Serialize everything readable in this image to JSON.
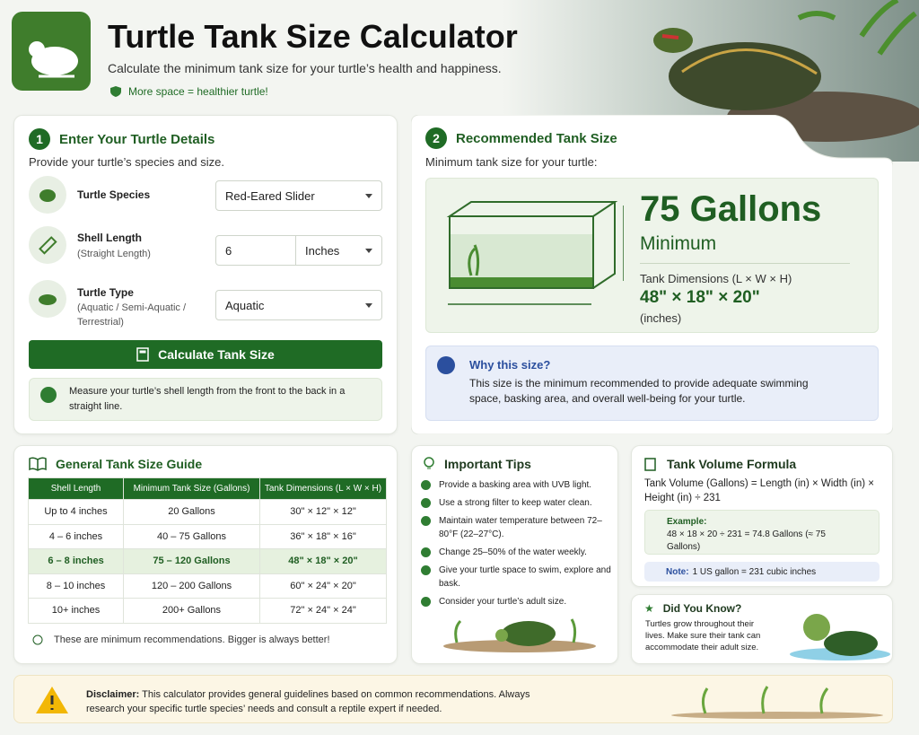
{
  "header": {
    "title": "Turtle Tank Size Calculator",
    "subtitle": "Calculate the minimum tank size for your turtle’s health and happiness.",
    "badge": "More space = healthier turtle!"
  },
  "details": {
    "step": 1,
    "title": "Enter Your Turtle Details",
    "description": "Provide your turtle’s species and size.",
    "fields": [
      {
        "label": "Turtle Species",
        "value": "Red-Eared Slider"
      },
      {
        "label": "Shell Length",
        "hint": "(Straight Length)",
        "value": 6,
        "unit": "Inches"
      },
      {
        "label": "Turtle Type",
        "hint": "(Aquatic / Semi-Aquatic / Terrestrial)",
        "value": "Aquatic"
      }
    ],
    "button": "Calculate Tank Size",
    "tip": "Measure your turtle’s shell length from the front to the back in a straight line."
  },
  "result": {
    "step": 2,
    "title": "Recommended Tank Size",
    "description": "Minimum tank size for your turtle:",
    "gallons": "75 Gallons",
    "qualifier": "Minimum",
    "dimensions_label": "Tank Dimensions (L × W × H)",
    "dimensions": "48\" × 18\" × 20\"",
    "units": "(inches)",
    "why_title": "Why this size?",
    "why_text": "This size is the minimum recommended to provide adequate swimming space, basking area, and overall well-being for your turtle."
  },
  "guide": {
    "title": "General Tank Size Guide",
    "columns": [
      "Shell Length",
      "Minimum Tank Size (Gallons)",
      "Tank Dimensions (L × W × H)"
    ],
    "rows": [
      [
        "Up to 4 inches",
        "20 Gallons",
        "30\" × 12\" × 12\""
      ],
      [
        "4 – 6 inches",
        "40 – 75 Gallons",
        "36\" × 18\" × 16\""
      ],
      [
        "6 – 8 inches",
        "75 – 120 Gallons",
        "48\" × 18\" × 20\""
      ],
      [
        "8 – 10 inches",
        "120 – 200 Gallons",
        "60\" × 24\" × 20\""
      ],
      [
        "10+ inches",
        "200+ Gallons",
        "72\" × 24\" × 24\""
      ]
    ],
    "footnote": "These are minimum recommendations. Bigger is always better!"
  },
  "tips": {
    "title": "Important Tips",
    "items": [
      "Provide a basking area with UVB light.",
      "Use a strong filter to keep water clean.",
      "Maintain water temperature between 72–80°F (22–27°C).",
      "Change 25–50% of the water weekly.",
      "Give your turtle space to swim, explore and bask.",
      "Consider your turtle’s adult size."
    ]
  },
  "formula": {
    "title": "Tank Volume Formula",
    "formula": "Tank Volume (Gallons) = Length (in) × Width (in) × Height (in) ÷ 231",
    "example_label": "Example:",
    "example": "48 × 18 × 20 ÷ 231 = 74.8 Gallons (≈ 75 Gallons)",
    "note_label": "Note:",
    "note": "1 US gallon = 231 cubic inches"
  },
  "fact": {
    "title": "Did You Know?",
    "text": "Turtles grow throughout their lives. Make sure their tank can accommodate their adult size."
  },
  "disclaimer": {
    "label": "Disclaimer:",
    "text": "This calculator provides general guidelines based on common recommendations. Always research your specific turtle species’ needs and consult a reptile expert if needed."
  }
}
